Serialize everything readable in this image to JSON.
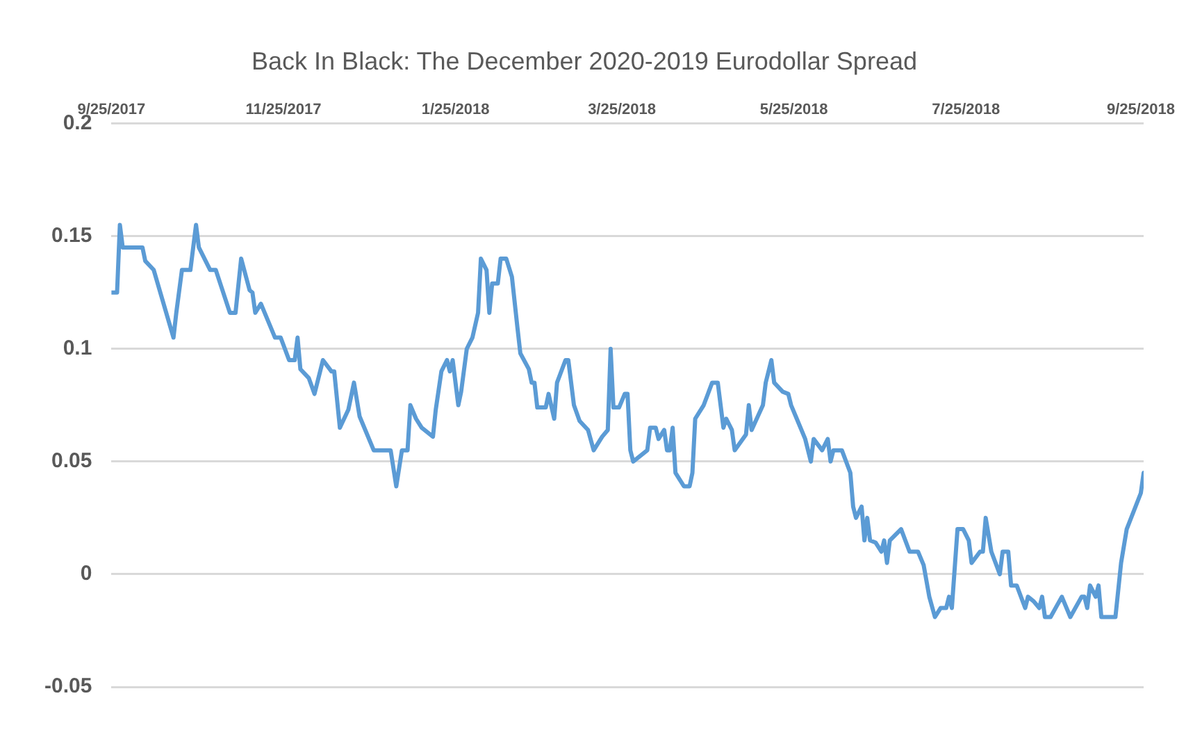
{
  "chart_data": {
    "type": "line",
    "title": "Back In Black: The December 2020-2019 Eurodollar Spread",
    "xlim": [
      "2017-09-25",
      "2018-09-26"
    ],
    "xticks": [
      {
        "value": "2017-09-25",
        "label": "9/25/2017"
      },
      {
        "value": "2017-11-25",
        "label": "11/25/2017"
      },
      {
        "value": "2018-01-25",
        "label": "1/25/2018"
      },
      {
        "value": "2018-03-25",
        "label": "3/25/2018"
      },
      {
        "value": "2018-05-25",
        "label": "5/25/2018"
      },
      {
        "value": "2018-07-25",
        "label": "7/25/2018"
      },
      {
        "value": "2018-09-25",
        "label": "9/25/2018"
      }
    ],
    "ylim": [
      -0.05,
      0.2
    ],
    "yticks": [
      -0.05,
      0,
      0.05,
      0.1,
      0.15,
      0.2
    ],
    "grid": "y",
    "legend": false,
    "marker": "none",
    "line_style": "solid",
    "series": [
      {
        "color": "#5b9bd5",
        "x": [
          "2017-09-25",
          "2017-09-27",
          "2017-09-28",
          "2017-09-29",
          "2017-10-06",
          "2017-10-07",
          "2017-10-10",
          "2017-10-17",
          "2017-10-18",
          "2017-10-20",
          "2017-10-23",
          "2017-10-25",
          "2017-10-26",
          "2017-10-30",
          "2017-11-01",
          "2017-11-06",
          "2017-11-08",
          "2017-11-10",
          "2017-11-13",
          "2017-11-14",
          "2017-11-15",
          "2017-11-17",
          "2017-11-22",
          "2017-11-24",
          "2017-11-27",
          "2017-11-29",
          "2017-11-30",
          "2017-12-01",
          "2017-12-04",
          "2017-12-06",
          "2017-12-09",
          "2017-12-12",
          "2017-12-13",
          "2017-12-15",
          "2017-12-18",
          "2017-12-20",
          "2017-12-22",
          "2017-12-27",
          "2018-01-02",
          "2018-01-04",
          "2018-01-06",
          "2018-01-08",
          "2018-01-09",
          "2018-01-11",
          "2018-01-13",
          "2018-01-17",
          "2018-01-18",
          "2018-01-20",
          "2018-01-22",
          "2018-01-23",
          "2018-01-24",
          "2018-01-26",
          "2018-01-27",
          "2018-01-29",
          "2018-01-31",
          "2018-02-02",
          "2018-02-03",
          "2018-02-05",
          "2018-02-06",
          "2018-02-07",
          "2018-02-09",
          "2018-02-10",
          "2018-02-12",
          "2018-02-14",
          "2018-02-16",
          "2018-02-17",
          "2018-02-20",
          "2018-02-21",
          "2018-02-22",
          "2018-02-23",
          "2018-02-26",
          "2018-02-27",
          "2018-03-01",
          "2018-03-02",
          "2018-03-05",
          "2018-03-06",
          "2018-03-08",
          "2018-03-10",
          "2018-03-13",
          "2018-03-15",
          "2018-03-18",
          "2018-03-20",
          "2018-03-21",
          "2018-03-22",
          "2018-03-24",
          "2018-03-26",
          "2018-03-27",
          "2018-03-28",
          "2018-03-29",
          "2018-04-01",
          "2018-04-03",
          "2018-04-04",
          "2018-04-06",
          "2018-04-07",
          "2018-04-09",
          "2018-04-10",
          "2018-04-11",
          "2018-04-12",
          "2018-04-13",
          "2018-04-16",
          "2018-04-18",
          "2018-04-19",
          "2018-04-20",
          "2018-04-23",
          "2018-04-26",
          "2018-04-28",
          "2018-04-30",
          "2018-05-01",
          "2018-05-03",
          "2018-05-04",
          "2018-05-08",
          "2018-05-09",
          "2018-05-10",
          "2018-05-14",
          "2018-05-15",
          "2018-05-17",
          "2018-05-18",
          "2018-05-21",
          "2018-05-23",
          "2018-05-24",
          "2018-05-26",
          "2018-05-29",
          "2018-05-31",
          "2018-06-01",
          "2018-06-04",
          "2018-06-06",
          "2018-06-07",
          "2018-06-08",
          "2018-06-11",
          "2018-06-14",
          "2018-06-15",
          "2018-06-16",
          "2018-06-18",
          "2018-06-19",
          "2018-06-20",
          "2018-06-21",
          "2018-06-23",
          "2018-06-25",
          "2018-06-26",
          "2018-06-27",
          "2018-06-28",
          "2018-07-02",
          "2018-07-05",
          "2018-07-08",
          "2018-07-10",
          "2018-07-12",
          "2018-07-14",
          "2018-07-16",
          "2018-07-18",
          "2018-07-19",
          "2018-07-20",
          "2018-07-22",
          "2018-07-24",
          "2018-07-26",
          "2018-07-27",
          "2018-07-30",
          "2018-07-31",
          "2018-08-01",
          "2018-08-03",
          "2018-08-06",
          "2018-08-07",
          "2018-08-09",
          "2018-08-10",
          "2018-08-12",
          "2018-08-15",
          "2018-08-16",
          "2018-08-18",
          "2018-08-20",
          "2018-08-21",
          "2018-08-22",
          "2018-08-24",
          "2018-08-28",
          "2018-08-31",
          "2018-09-04",
          "2018-09-05",
          "2018-09-06",
          "2018-09-07",
          "2018-09-09",
          "2018-09-10",
          "2018-09-11",
          "2018-09-16",
          "2018-09-18",
          "2018-09-20",
          "2018-09-25",
          "2018-09-26"
        ],
        "values": [
          0.125,
          0.125,
          0.155,
          0.145,
          0.145,
          0.139,
          0.135,
          0.105,
          0.116,
          0.135,
          0.135,
          0.155,
          0.145,
          0.135,
          0.135,
          0.116,
          0.116,
          0.14,
          0.126,
          0.125,
          0.116,
          0.12,
          0.105,
          0.105,
          0.095,
          0.095,
          0.105,
          0.091,
          0.087,
          0.08,
          0.095,
          0.09,
          0.09,
          0.065,
          0.073,
          0.085,
          0.07,
          0.055,
          0.055,
          0.039,
          0.055,
          0.055,
          0.075,
          0.069,
          0.065,
          0.061,
          0.073,
          0.09,
          0.095,
          0.09,
          0.095,
          0.075,
          0.081,
          0.1,
          0.105,
          0.116,
          0.14,
          0.135,
          0.116,
          0.129,
          0.129,
          0.14,
          0.14,
          0.132,
          0.109,
          0.098,
          0.091,
          0.085,
          0.085,
          0.074,
          0.074,
          0.08,
          0.069,
          0.085,
          0.095,
          0.095,
          0.075,
          0.068,
          0.064,
          0.055,
          0.061,
          0.064,
          0.1,
          0.074,
          0.074,
          0.08,
          0.08,
          0.055,
          0.05,
          0.053,
          0.055,
          0.065,
          0.065,
          0.06,
          0.064,
          0.055,
          0.055,
          0.065,
          0.045,
          0.039,
          0.039,
          0.045,
          0.069,
          0.075,
          0.085,
          0.085,
          0.065,
          0.069,
          0.064,
          0.055,
          0.062,
          0.075,
          0.064,
          0.075,
          0.085,
          0.095,
          0.085,
          0.081,
          0.08,
          0.075,
          0.069,
          0.06,
          0.05,
          0.06,
          0.055,
          0.06,
          0.05,
          0.055,
          0.055,
          0.045,
          0.03,
          0.025,
          0.03,
          0.015,
          0.025,
          0.015,
          0.014,
          0.01,
          0.015,
          0.005,
          0.015,
          0.02,
          0.01,
          0.01,
          0.004,
          -0.01,
          -0.019,
          -0.015,
          -0.015,
          -0.01,
          -0.015,
          0.02,
          0.02,
          0.015,
          0.005,
          0.01,
          0.01,
          0.025,
          0.01,
          0,
          0.01,
          0.01,
          -0.005,
          -0.005,
          -0.015,
          -0.01,
          -0.012,
          -0.015,
          -0.01,
          -0.019,
          -0.019,
          -0.01,
          -0.019,
          -0.01,
          -0.01,
          -0.015,
          -0.005,
          -0.01,
          -0.005,
          -0.019,
          -0.019,
          0.005,
          0.02,
          0.036,
          0.045
        ]
      }
    ]
  }
}
